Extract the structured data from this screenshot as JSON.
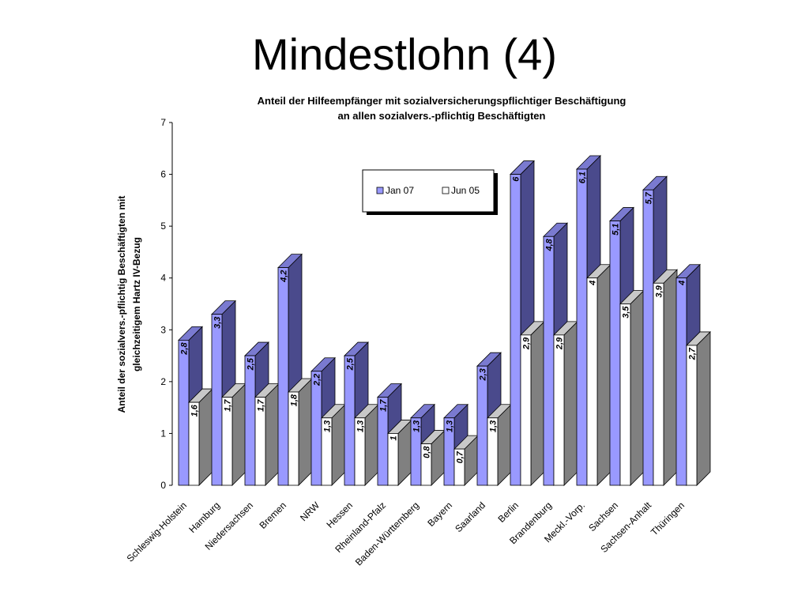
{
  "slide": {
    "title": "Mindestlohn (4)"
  },
  "chart_data": {
    "type": "bar",
    "title": "Anteil der Hilfeempfänger mit sozialversicherungspflichtiger Beschäftigung",
    "subtitle": "an allen sozialvers.-pflichtig Beschäftigten",
    "ylabel_line1": "Anteil der sozialvers.-pflichtig Beschäftigten mit",
    "ylabel_line2": "gleichzeitigem Hartz IV-Bezug",
    "xlabel": "",
    "ylim": [
      0,
      7
    ],
    "yticks": [
      "0",
      "1",
      "2",
      "3",
      "4",
      "5",
      "6",
      "7"
    ],
    "grid": false,
    "legend_position": "top-center",
    "categories": [
      "Schleswig-Holstein",
      "Hamburg",
      "Niedersachsen",
      "Bremen",
      "NRW",
      "Hessen",
      "Rheinland-Pfalz",
      "Baden-Württemberg",
      "Bayern",
      "Saarland",
      "Berlin",
      "Brandenburg",
      "Meckl.-Vorp.",
      "Sachsen",
      "Sachsen-Anhalt",
      "Thüringen"
    ],
    "series": [
      {
        "name": "Jan 07",
        "color": "#9999ff",
        "values": [
          2.8,
          3.3,
          2.5,
          4.2,
          2.2,
          2.5,
          1.7,
          1.3,
          1.3,
          2.3,
          6,
          4.8,
          6.1,
          5.1,
          5.7,
          4
        ],
        "labels": [
          "2,8",
          "3,3",
          "2,5",
          "4,2",
          "2,2",
          "2,5",
          "1,7",
          "1,3",
          "1,3",
          "2,3",
          "6",
          "4,8",
          "6,1",
          "5,1",
          "5,7",
          "4"
        ]
      },
      {
        "name": "Jun 05",
        "color": "#ffffff",
        "values": [
          1.6,
          1.7,
          1.7,
          1.8,
          1.3,
          1.3,
          1,
          0.8,
          0.7,
          1.3,
          2.9,
          2.9,
          4,
          3.5,
          3.9,
          2.7
        ],
        "labels": [
          "1,6",
          "1,7",
          "1,7",
          "1,8",
          "1,3",
          "1,3",
          "1",
          "0,8",
          "0,7",
          "1,3",
          "2,9",
          "2,9",
          "4",
          "3,5",
          "3,9",
          "2,7"
        ]
      }
    ]
  }
}
